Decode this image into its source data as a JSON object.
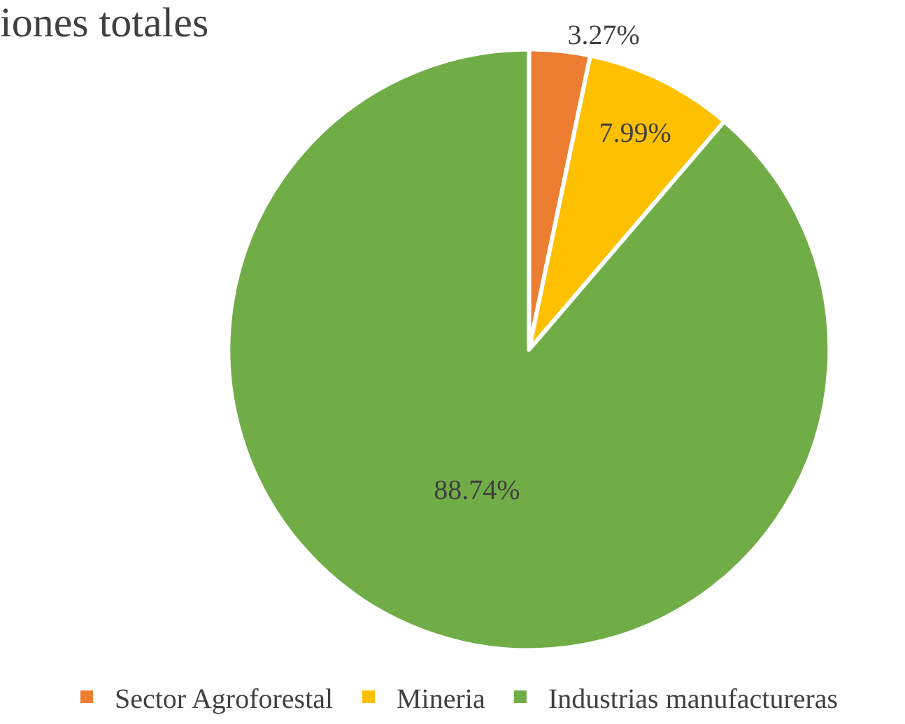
{
  "chart_data": {
    "type": "pie",
    "title": "iones totales",
    "categories": [
      "Sector Agroforestal",
      "Mineria",
      "Industrias manufactureras"
    ],
    "values": [
      3.27,
      7.99,
      88.74
    ],
    "colors": [
      "#ed7d31",
      "#ffc000",
      "#70ad47"
    ],
    "value_labels": [
      "3.27%",
      "7.99%",
      "88.74%"
    ],
    "legend": "bottom"
  }
}
